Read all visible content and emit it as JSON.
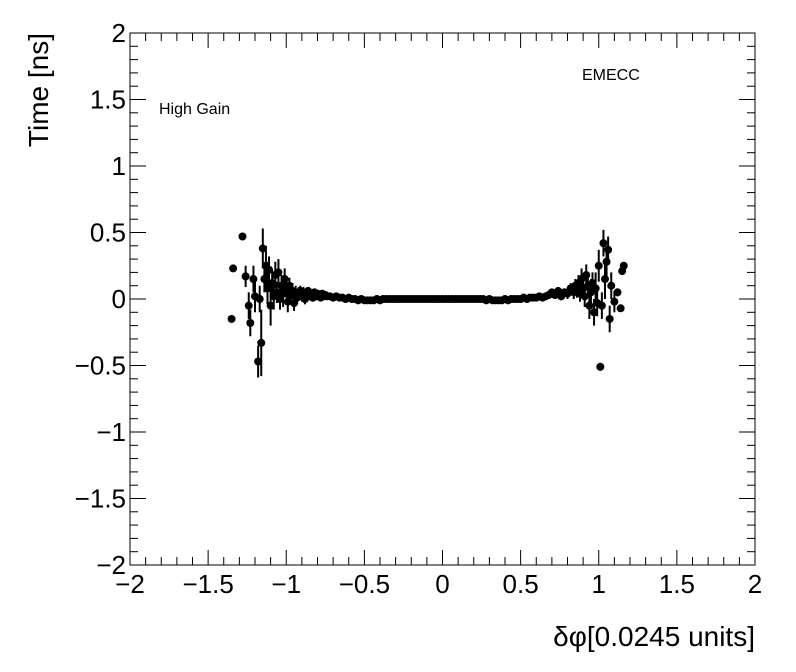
{
  "chart_data": {
    "type": "scatter",
    "title": "",
    "xlabel": "δφ[0.0245 units]",
    "ylabel": "Time [ns]",
    "xlim": [
      -2,
      2
    ],
    "ylim": [
      -2,
      2
    ],
    "x_ticks": [
      "−2",
      "−1.5",
      "−1",
      "−0.5",
      "0",
      "0.5",
      "1",
      "1.5",
      "2"
    ],
    "y_ticks": [
      "−2",
      "−1.5",
      "−1",
      "−0.5",
      "0",
      "0.5",
      "1",
      "1.5",
      "2"
    ],
    "annotations": {
      "left": "High Gain",
      "right": "EMECC"
    },
    "grid": false,
    "marker_color": "#000000",
    "series": [
      {
        "points": [
          [
            -1.35,
            -0.15,
            0.02
          ],
          [
            -1.34,
            0.23,
            0.02
          ],
          [
            -1.28,
            0.47,
            0.02
          ],
          [
            -1.26,
            0.17,
            0.08
          ],
          [
            -1.24,
            -0.05,
            0.1
          ],
          [
            -1.23,
            -0.18,
            0.1
          ],
          [
            -1.21,
            0.15,
            0.1
          ],
          [
            -1.2,
            0.02,
            0.12
          ],
          [
            -1.18,
            -0.47,
            0.12
          ],
          [
            -1.17,
            0.0,
            0.1
          ],
          [
            -1.16,
            -0.33,
            0.25
          ],
          [
            -1.15,
            0.38,
            0.15
          ],
          [
            -1.14,
            0.15,
            0.1
          ],
          [
            -1.13,
            0.25,
            0.15
          ],
          [
            -1.12,
            0.08,
            0.12
          ],
          [
            -1.11,
            0.22,
            0.1
          ],
          [
            -1.1,
            -0.05,
            0.15
          ],
          [
            -1.09,
            0.12,
            0.1
          ],
          [
            -1.08,
            0.02,
            0.1
          ],
          [
            -1.07,
            0.18,
            0.1
          ],
          [
            -1.06,
            0.05,
            0.08
          ],
          [
            -1.05,
            0.2,
            0.1
          ],
          [
            -1.04,
            0.0,
            0.08
          ],
          [
            -1.03,
            0.1,
            0.08
          ],
          [
            -1.02,
            0.04,
            0.1
          ],
          [
            -1.01,
            0.15,
            0.08
          ],
          [
            -1.0,
            0.07,
            0.06
          ],
          [
            -0.99,
            -0.02,
            0.08
          ],
          [
            -0.98,
            0.1,
            0.06
          ],
          [
            -0.97,
            0.03,
            0.06
          ],
          [
            -0.96,
            0.06,
            0.06
          ],
          [
            -0.95,
            -0.03,
            0.06
          ],
          [
            -0.94,
            0.05,
            0.05
          ],
          [
            -0.93,
            0.01,
            0.05
          ],
          [
            -0.92,
            0.04,
            0.05
          ],
          [
            -0.91,
            0.06,
            0.04
          ],
          [
            -0.9,
            0.02,
            0.04
          ],
          [
            -0.89,
            0.05,
            0.04
          ],
          [
            -0.88,
            0.0,
            0.04
          ],
          [
            -0.87,
            0.03,
            0.03
          ],
          [
            -0.86,
            0.06,
            0.03
          ],
          [
            -0.85,
            0.02,
            0.03
          ],
          [
            -0.84,
            0.04,
            0.03
          ],
          [
            -0.83,
            0.01,
            0.03
          ],
          [
            -0.82,
            0.05,
            0.03
          ],
          [
            -0.81,
            0.02,
            0.03
          ],
          [
            -0.8,
            0.04,
            0.02
          ],
          [
            -0.79,
            0.03,
            0.02
          ],
          [
            -0.78,
            0.01,
            0.02
          ],
          [
            -0.77,
            0.04,
            0.02
          ],
          [
            -0.76,
            0.02,
            0.02
          ],
          [
            -0.75,
            0.03,
            0.02
          ],
          [
            -0.74,
            0.02,
            0.02
          ],
          [
            -0.72,
            0.02,
            0.01
          ],
          [
            -0.7,
            0.01,
            0.01
          ],
          [
            -0.68,
            0.02,
            0.01
          ],
          [
            -0.66,
            0.01,
            0.01
          ],
          [
            -0.64,
            0.01,
            0.01
          ],
          [
            -0.62,
            0.0,
            0.01
          ],
          [
            -0.6,
            0.01,
            0.01
          ],
          [
            -0.58,
            0.0,
            0.01
          ],
          [
            -0.56,
            0.0,
            0.01
          ],
          [
            -0.54,
            -0.01,
            0.01
          ],
          [
            -0.52,
            0.0,
            0.01
          ],
          [
            -0.5,
            -0.01,
            0.01
          ],
          [
            -0.48,
            -0.01,
            0.01
          ],
          [
            -0.46,
            -0.01,
            0.01
          ],
          [
            -0.44,
            -0.01,
            0.01
          ],
          [
            -0.42,
            0.0,
            0.01
          ],
          [
            -0.4,
            -0.01,
            0.01
          ],
          [
            -0.38,
            0.0,
            0.01
          ],
          [
            -0.36,
            0.0,
            0.01
          ],
          [
            -0.34,
            0.0,
            0.01
          ],
          [
            -0.32,
            0.0,
            0.01
          ],
          [
            -0.3,
            0.0,
            0.01
          ],
          [
            -0.28,
            0.0,
            0.01
          ],
          [
            -0.26,
            0.0,
            0.01
          ],
          [
            -0.24,
            0.0,
            0.01
          ],
          [
            -0.22,
            0.0,
            0.01
          ],
          [
            -0.2,
            0.0,
            0.01
          ],
          [
            -0.18,
            0.0,
            0.01
          ],
          [
            -0.16,
            0.0,
            0.01
          ],
          [
            -0.14,
            0.0,
            0.01
          ],
          [
            -0.12,
            0.0,
            0.01
          ],
          [
            -0.1,
            0.0,
            0.01
          ],
          [
            -0.08,
            0.0,
            0.01
          ],
          [
            -0.06,
            0.0,
            0.01
          ],
          [
            -0.04,
            0.0,
            0.01
          ],
          [
            -0.02,
            0.0,
            0.01
          ],
          [
            0.0,
            0.0,
            0.01
          ],
          [
            0.02,
            0.0,
            0.01
          ],
          [
            0.04,
            0.0,
            0.01
          ],
          [
            0.06,
            0.0,
            0.01
          ],
          [
            0.08,
            0.0,
            0.01
          ],
          [
            0.1,
            0.0,
            0.01
          ],
          [
            0.12,
            0.0,
            0.01
          ],
          [
            0.14,
            0.0,
            0.01
          ],
          [
            0.16,
            0.0,
            0.01
          ],
          [
            0.18,
            0.0,
            0.01
          ],
          [
            0.2,
            0.0,
            0.01
          ],
          [
            0.22,
            0.0,
            0.01
          ],
          [
            0.24,
            0.0,
            0.01
          ],
          [
            0.26,
            0.0,
            0.01
          ],
          [
            0.28,
            -0.01,
            0.01
          ],
          [
            0.3,
            0.0,
            0.01
          ],
          [
            0.32,
            -0.01,
            0.01
          ],
          [
            0.34,
            -0.01,
            0.01
          ],
          [
            0.36,
            -0.01,
            0.01
          ],
          [
            0.38,
            -0.01,
            0.01
          ],
          [
            0.4,
            0.0,
            0.01
          ],
          [
            0.42,
            -0.01,
            0.01
          ],
          [
            0.44,
            0.0,
            0.01
          ],
          [
            0.46,
            0.0,
            0.01
          ],
          [
            0.48,
            0.0,
            0.01
          ],
          [
            0.5,
            0.0,
            0.01
          ],
          [
            0.52,
            0.01,
            0.01
          ],
          [
            0.54,
            0.0,
            0.01
          ],
          [
            0.56,
            0.01,
            0.01
          ],
          [
            0.58,
            0.01,
            0.01
          ],
          [
            0.6,
            0.01,
            0.01
          ],
          [
            0.62,
            0.02,
            0.01
          ],
          [
            0.64,
            0.01,
            0.02
          ],
          [
            0.66,
            0.02,
            0.02
          ],
          [
            0.68,
            0.03,
            0.02
          ],
          [
            0.7,
            0.05,
            0.02
          ],
          [
            0.72,
            0.03,
            0.02
          ],
          [
            0.74,
            0.06,
            0.03
          ],
          [
            0.76,
            0.02,
            0.03
          ],
          [
            0.78,
            0.05,
            0.03
          ],
          [
            0.8,
            0.04,
            0.04
          ],
          [
            0.82,
            0.08,
            0.04
          ],
          [
            0.84,
            0.05,
            0.05
          ],
          [
            0.85,
            0.1,
            0.05
          ],
          [
            0.86,
            0.07,
            0.06
          ],
          [
            0.87,
            0.12,
            0.06
          ],
          [
            0.88,
            0.04,
            0.06
          ],
          [
            0.89,
            0.15,
            0.08
          ],
          [
            0.9,
            0.08,
            0.07
          ],
          [
            0.91,
            0.02,
            0.08
          ],
          [
            0.92,
            0.18,
            0.08
          ],
          [
            0.93,
            0.1,
            0.08
          ],
          [
            0.94,
            -0.05,
            0.1
          ],
          [
            0.95,
            0.05,
            0.1
          ],
          [
            0.96,
            0.12,
            0.08
          ],
          [
            0.97,
            -0.1,
            0.1
          ],
          [
            0.98,
            0.08,
            0.12
          ],
          [
            0.99,
            -0.03,
            0.1
          ],
          [
            1.0,
            0.25,
            0.12
          ],
          [
            1.01,
            -0.51,
            0.03
          ],
          [
            1.02,
            -0.05,
            0.1
          ],
          [
            1.03,
            0.42,
            0.1
          ],
          [
            1.04,
            0.15,
            0.15
          ],
          [
            1.05,
            0.28,
            0.12
          ],
          [
            1.06,
            0.37,
            0.1
          ],
          [
            1.07,
            -0.15,
            0.1
          ],
          [
            1.08,
            0.1,
            0.1
          ],
          [
            1.1,
            -0.02,
            0.08
          ],
          [
            1.12,
            0.05,
            0.03
          ],
          [
            1.14,
            -0.07,
            0.02
          ],
          [
            1.15,
            0.21,
            0.02
          ],
          [
            1.16,
            0.25,
            0.02
          ]
        ]
      }
    ]
  }
}
